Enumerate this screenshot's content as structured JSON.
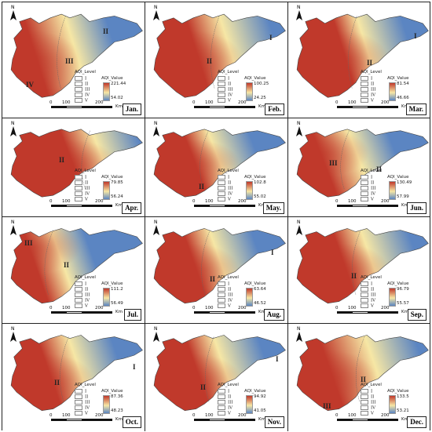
{
  "legend": {
    "level_title": "AQI_Level",
    "value_title": "AQI_Value",
    "levels": [
      "I",
      "II",
      "III",
      "IV",
      "V"
    ],
    "scale_ticks": [
      "0",
      "100",
      "200"
    ],
    "scale_unit": "Km",
    "north": "N"
  },
  "colors": {
    "high": "#c0392b",
    "mid": "#f6e7a5",
    "low": "#5b85c2"
  },
  "panels": [
    {
      "month": "Jan.",
      "max": "221.44",
      "min": "54.02",
      "regions": [
        "II",
        "III",
        "IV"
      ]
    },
    {
      "month": "Feb.",
      "max": "100.25",
      "min": "24.25",
      "regions": [
        "I",
        "II"
      ]
    },
    {
      "month": "Mar.",
      "max": "81.54",
      "min": "46.66",
      "regions": [
        "II",
        "I"
      ]
    },
    {
      "month": "Apr.",
      "max": "79.85",
      "min": "56.24",
      "regions": [
        "II"
      ]
    },
    {
      "month": "May.",
      "max": "102.8",
      "min": "55.02",
      "regions": [
        "II"
      ]
    },
    {
      "month": "Jun.",
      "max": "130.49",
      "min": "57.99",
      "regions": [
        "III",
        "II"
      ]
    },
    {
      "month": "Jul.",
      "max": "111.2",
      "min": "56.49",
      "regions": [
        "III",
        "II"
      ]
    },
    {
      "month": "Aug.",
      "max": "63.64",
      "min": "46.52",
      "regions": [
        "II",
        "I"
      ]
    },
    {
      "month": "Sep.",
      "max": "96.79",
      "min": "55.57",
      "regions": [
        "II"
      ]
    },
    {
      "month": "Oct.",
      "max": "87.36",
      "min": "48.23",
      "regions": [
        "II",
        "I"
      ]
    },
    {
      "month": "Nov.",
      "max": "94.92",
      "min": "41.05",
      "regions": [
        "II",
        "I"
      ]
    },
    {
      "month": "Dec.",
      "max": "133.5",
      "min": "53.21",
      "regions": [
        "III",
        "II"
      ]
    }
  ]
}
